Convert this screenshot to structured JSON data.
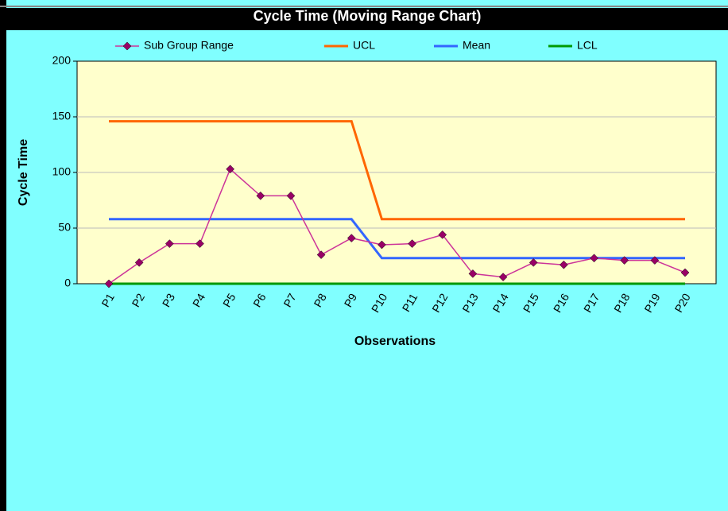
{
  "chart_data": {
    "type": "line",
    "title": "Cycle Time (Moving Range Chart)",
    "x_label": "Observations",
    "y_label": "Cycle Time",
    "categories": [
      "P1",
      "P2",
      "P3",
      "P4",
      "P5",
      "P6",
      "P7",
      "P8",
      "P9",
      "P10",
      "P11",
      "P12",
      "P13",
      "P14",
      "P15",
      "P16",
      "P17",
      "P18",
      "P19",
      "P20"
    ],
    "series": [
      {
        "name": "Sub Group Range",
        "color": "#cc3399",
        "marker": "diamond",
        "marker_color": "#990066",
        "values": [
          0,
          19,
          36,
          36,
          103,
          79,
          79,
          26,
          41,
          35,
          36,
          44,
          9,
          6,
          19,
          17,
          23,
          21,
          21,
          10
        ]
      },
      {
        "name": "UCL",
        "color": "#ff6600",
        "values": [
          146,
          146,
          146,
          146,
          146,
          146,
          146,
          146,
          146,
          58,
          58,
          58,
          58,
          58,
          58,
          58,
          58,
          58,
          58,
          58
        ]
      },
      {
        "name": "Mean",
        "color": "#3366ff",
        "values": [
          58,
          58,
          58,
          58,
          58,
          58,
          58,
          58,
          58,
          23,
          23,
          23,
          23,
          23,
          23,
          23,
          23,
          23,
          23,
          23
        ]
      },
      {
        "name": "LCL",
        "color": "#009900",
        "values": [
          0,
          0,
          0,
          0,
          0,
          0,
          0,
          0,
          0,
          0,
          0,
          0,
          0,
          0,
          0,
          0,
          0,
          0,
          0,
          0
        ]
      }
    ],
    "ylim": [
      0,
      200
    ],
    "yticks": [
      0,
      50,
      100,
      150,
      200
    ],
    "grid": true,
    "legend": "top"
  }
}
